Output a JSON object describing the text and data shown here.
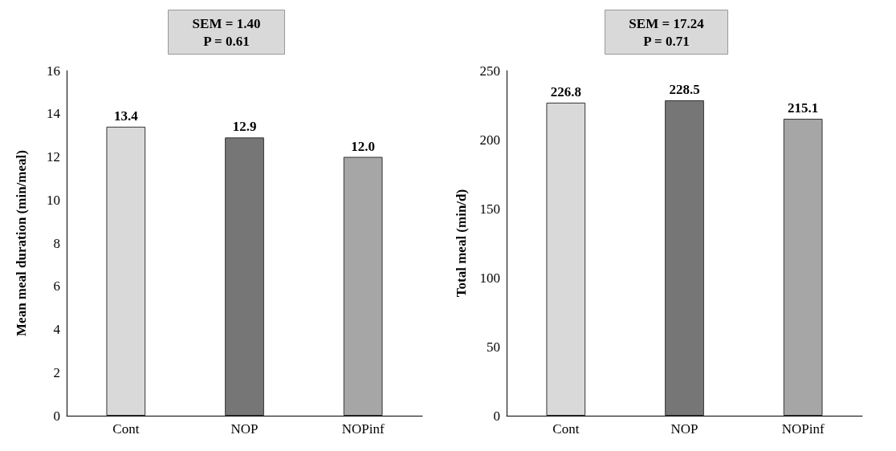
{
  "chart_data": [
    {
      "type": "bar",
      "annotations": [
        "SEM = 1.40",
        "P = 0.61"
      ],
      "ylabel": "Mean meal duration (min/meal)",
      "categories": [
        "Cont",
        "NOP",
        "NOPinf"
      ],
      "values": [
        13.4,
        12.9,
        12.0
      ],
      "value_labels": [
        "13.4",
        "12.9",
        "12.0"
      ],
      "colors": [
        "#d9d9d9",
        "#767676",
        "#a6a6a6"
      ],
      "ylim": [
        0,
        16
      ],
      "yticks": [
        0,
        2,
        4,
        6,
        8,
        10,
        12,
        14,
        16
      ],
      "grid": false
    },
    {
      "type": "bar",
      "annotations": [
        "SEM = 17.24",
        "P = 0.71"
      ],
      "ylabel": "Total meal (min/d)",
      "categories": [
        "Cont",
        "NOP",
        "NOPinf"
      ],
      "values": [
        226.8,
        228.5,
        215.1
      ],
      "data_labels": true,
      "colors": [
        "#d9d9d9",
        "#767676",
        "#a6a6a6"
      ],
      "ylim": [
        0,
        250
      ],
      "yticks": [
        0,
        50,
        100,
        150,
        200,
        250
      ],
      "grid": false
    }
  ]
}
